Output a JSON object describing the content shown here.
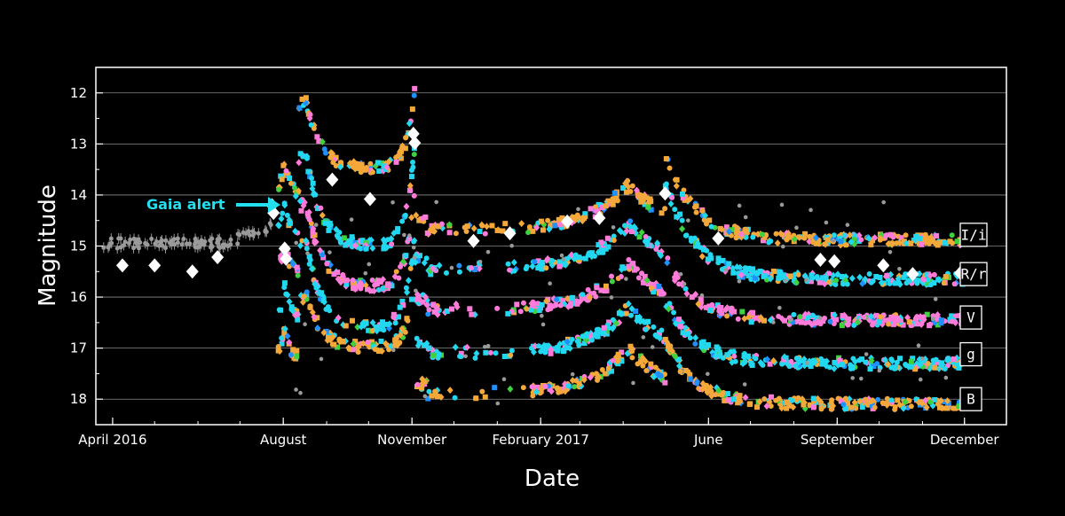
{
  "chart_data": {
    "type": "scatter",
    "title": "",
    "xlabel": "Date",
    "ylabel": "Magnitude",
    "x_domain": [
      "2016-03-20",
      "2017-12-31"
    ],
    "ylim": [
      18.5,
      11.5
    ],
    "y_inverted": true,
    "yticks": [
      12,
      13,
      14,
      15,
      16,
      17,
      18
    ],
    "xticks": [
      {
        "date": "2016-04-01",
        "label": "April 2016"
      },
      {
        "date": "2016-08-01",
        "label": "August"
      },
      {
        "date": "2016-11-01",
        "label": "November"
      },
      {
        "date": "2017-02-01",
        "label": "February 2017"
      },
      {
        "date": "2017-06-01",
        "label": "June"
      },
      {
        "date": "2017-09-01",
        "label": "September"
      },
      {
        "date": "2017-12-01",
        "label": "December"
      }
    ],
    "grid": true,
    "colors": {
      "background": "#000000",
      "axes": "#ffffff",
      "grid": "#8a8a8a",
      "gaia": "#ffffff",
      "archival": "#9a9a9a",
      "cyan": "#22d8f0",
      "pink": "#ff7ad9",
      "orange": "#f5a83a",
      "green": "#3fd13f",
      "blue": "#1e90ff",
      "red": "#ff3030",
      "alert": "#22e0f0"
    },
    "band_labels": [
      "I/i",
      "R/r",
      "V",
      "g",
      "B"
    ],
    "annotation": {
      "text": "Gaia alert",
      "date": "2016-07-20",
      "magnitude": 14.2
    },
    "gaia_points": [
      {
        "date": "2016-04-08",
        "mag": 15.38
      },
      {
        "date": "2016-05-01",
        "mag": 15.38
      },
      {
        "date": "2016-05-28",
        "mag": 15.5
      },
      {
        "date": "2016-06-15",
        "mag": 15.22
      },
      {
        "date": "2016-07-24",
        "mag": 14.2
      },
      {
        "date": "2016-07-25",
        "mag": 14.35
      },
      {
        "date": "2016-08-02",
        "mag": 15.05
      },
      {
        "date": "2016-08-03",
        "mag": 15.25
      },
      {
        "date": "2016-09-05",
        "mag": 13.7
      },
      {
        "date": "2016-10-02",
        "mag": 14.08
      },
      {
        "date": "2016-11-02",
        "mag": 12.8
      },
      {
        "date": "2016-11-03",
        "mag": 12.98
      },
      {
        "date": "2016-12-15",
        "mag": 14.9
      },
      {
        "date": "2017-01-10",
        "mag": 14.75
      },
      {
        "date": "2017-02-20",
        "mag": 14.52
      },
      {
        "date": "2017-03-15",
        "mag": 14.45
      },
      {
        "date": "2017-05-01",
        "mag": 13.97
      },
      {
        "date": "2017-06-08",
        "mag": 14.85
      },
      {
        "date": "2017-08-20",
        "mag": 15.27
      },
      {
        "date": "2017-08-30",
        "mag": 15.3
      },
      {
        "date": "2017-10-04",
        "mag": 15.38
      },
      {
        "date": "2017-10-25",
        "mag": 15.55
      },
      {
        "date": "2017-11-28",
        "mag": 15.53
      }
    ],
    "series": [
      {
        "band": "I/i",
        "base": 14.78,
        "peaks": [
          12.2,
          13.5,
          12.6
        ],
        "color": "orange"
      },
      {
        "band": "R/r",
        "base": 15.55,
        "peaks": [
          13.3,
          15.0,
          13.1
        ],
        "color": "cyan"
      },
      {
        "band": "V",
        "base": 16.35,
        "peaks": [
          14.2,
          15.8,
          14.8
        ],
        "color": "pink"
      },
      {
        "band": "g",
        "base": 17.2,
        "peaks": [
          15.0,
          16.6,
          15.6
        ],
        "color": "cyan"
      },
      {
        "band": "B",
        "base": 18.0,
        "peaks": [
          16.0,
          17.0,
          16.4
        ],
        "color": "orange"
      }
    ]
  }
}
